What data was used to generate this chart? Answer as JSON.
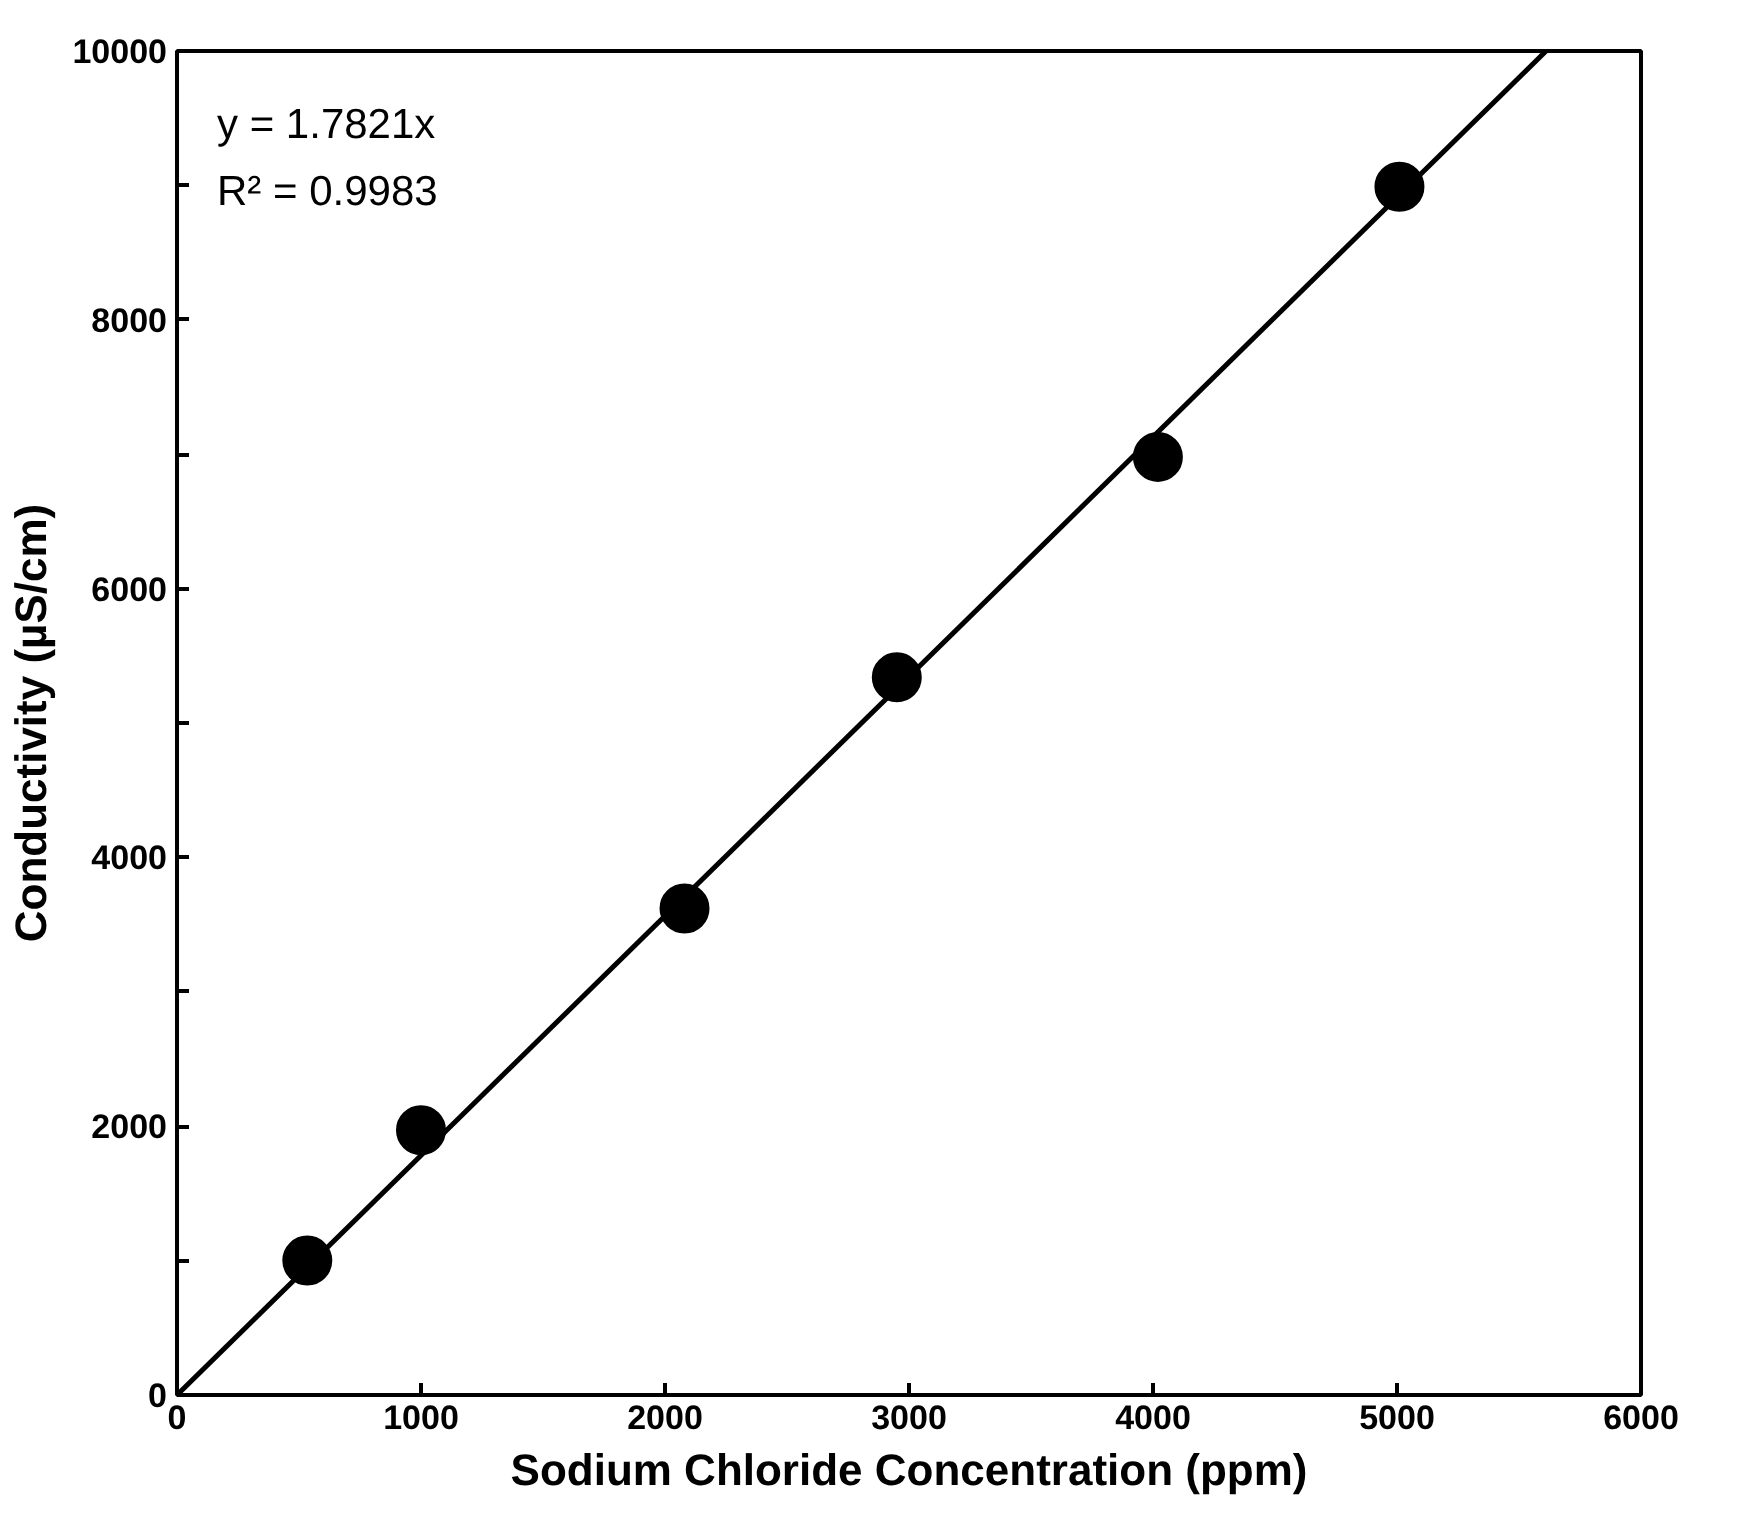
{
  "chart_data": {
    "type": "scatter",
    "xlabel": "Sodium Chloride Concentration (ppm)",
    "ylabel": "Conductivity (µS/cm)",
    "annotations": [
      "y = 1.7821x",
      "R² = 0.9983"
    ],
    "series": [
      {
        "color": "#000000",
        "marker": "circle",
        "x": [
          534,
          1000,
          2080,
          2950,
          4020,
          5010
        ],
        "values": [
          1000,
          1970,
          3620,
          5340,
          6980,
          8990
        ]
      },
      {
        "type": "line",
        "color": "#000000",
        "x": [
          0,
          5611
        ],
        "values": [
          0,
          10000
        ]
      }
    ],
    "grid": false,
    "xlim": [
      0,
      6000
    ],
    "xticks": [
      0,
      1000,
      2000,
      3000,
      4000,
      5000,
      6000
    ],
    "ylim": [
      0,
      10000
    ],
    "yticks": [
      0,
      {
        "value": 1000,
        "label": null
      },
      2000,
      {
        "value": 3000,
        "label": null
      },
      4000,
      {
        "value": 5000,
        "label": null
      },
      6000,
      {
        "value": 7000,
        "label": null
      },
      8000,
      {
        "value": 9000,
        "label": null
      },
      10000
    ]
  }
}
